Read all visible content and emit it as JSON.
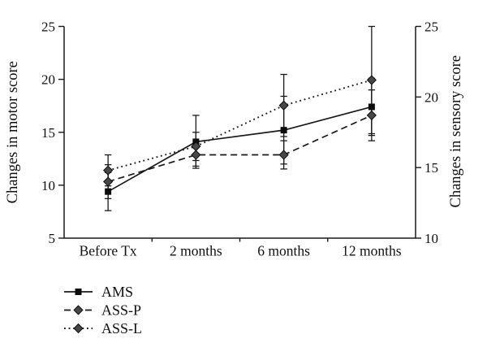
{
  "chart_data": {
    "type": "line",
    "title": "",
    "categories": [
      "Before Tx",
      "2 months",
      "6 months",
      "12 months"
    ],
    "axes": {
      "left": {
        "label": "Changes in motor score",
        "min": 5,
        "max": 25,
        "ticks": [
          5,
          10,
          15,
          20,
          25
        ]
      },
      "right": {
        "label": "Changes in sensory score",
        "min": 10,
        "max": 25,
        "ticks": [
          10,
          15,
          20,
          25
        ]
      }
    },
    "series": [
      {
        "name": "AMS",
        "axis": "left",
        "line_style": "solid",
        "marker": "square",
        "marker_fill": "#0d0d0d",
        "values": [
          9.4,
          14.1,
          15.2,
          17.4
        ],
        "errors": [
          1.8,
          2.5,
          3.2,
          2.7
        ]
      },
      {
        "name": "ASS-P",
        "axis": "right",
        "line_style": "dashed",
        "marker": "diamond",
        "marker_fill": "#474747",
        "values": [
          14.0,
          15.9,
          15.9,
          18.7
        ],
        "errors": [
          1.2,
          0.8,
          1.0,
          1.8
        ]
      },
      {
        "name": "ASS-L",
        "axis": "right",
        "line_style": "dotted",
        "marker": "diamond",
        "marker_fill": "#474747",
        "values": [
          14.8,
          16.5,
          19.4,
          21.2
        ],
        "errors": [
          1.1,
          1.0,
          2.2,
          3.8
        ]
      }
    ],
    "legend": {
      "position": "bottom-left",
      "entries": [
        "AMS",
        "ASS-P",
        "ASS-L"
      ]
    },
    "grid": false,
    "error_bars": true,
    "colors": {
      "axis": "#1a1a1a",
      "line": "#1a1a1a",
      "text": "#111111"
    },
    "background": "#ffffff"
  }
}
